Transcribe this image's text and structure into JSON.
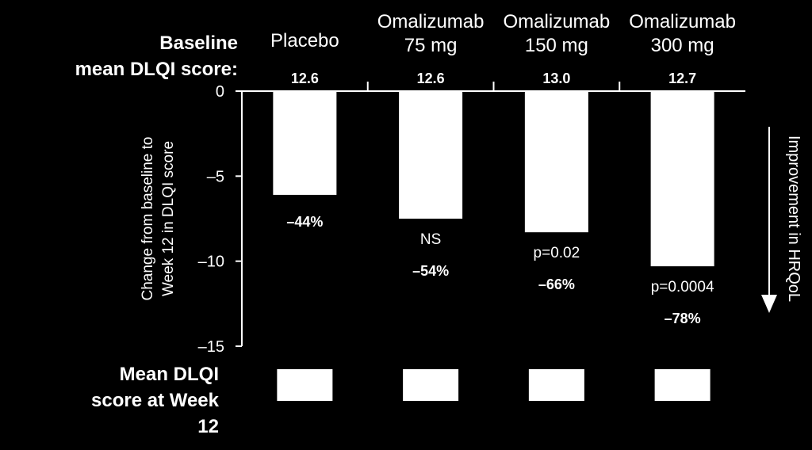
{
  "chart_data": {
    "type": "bar",
    "categories": [
      "Placebo",
      "Omalizumab\n75 mg",
      "Omalizumab\n150 mg",
      "Omalizumab\n300 mg"
    ],
    "values": [
      -6.1,
      -7.5,
      -8.3,
      -10.3
    ],
    "ylabel": "Change from baseline to\nWeek 12 in DLQI score",
    "ylim": [
      -15,
      0
    ],
    "yticks": [
      0,
      -5,
      -10,
      -15
    ],
    "ytick_labels": [
      "0",
      "–5",
      "–10",
      "–15"
    ],
    "grid": false,
    "baseline_row": {
      "label": "Baseline\nmean DLQI score:",
      "values": [
        "12.6",
        "12.6",
        "13.0",
        "12.7"
      ]
    },
    "pvalues": [
      "",
      "NS",
      "p=0.02",
      "p=0.0004"
    ],
    "percent_change": [
      "–44%",
      "–54%",
      "–66%",
      "–78%"
    ],
    "week12_row": {
      "label": "Mean DLQI\nscore at Week\n12",
      "values": [
        "",
        "",
        "",
        ""
      ]
    },
    "side_annotation": "Improvement in HRQoL",
    "colors": {
      "background": "#000000",
      "bar": "#ffffff",
      "text": "#ffffff"
    }
  }
}
